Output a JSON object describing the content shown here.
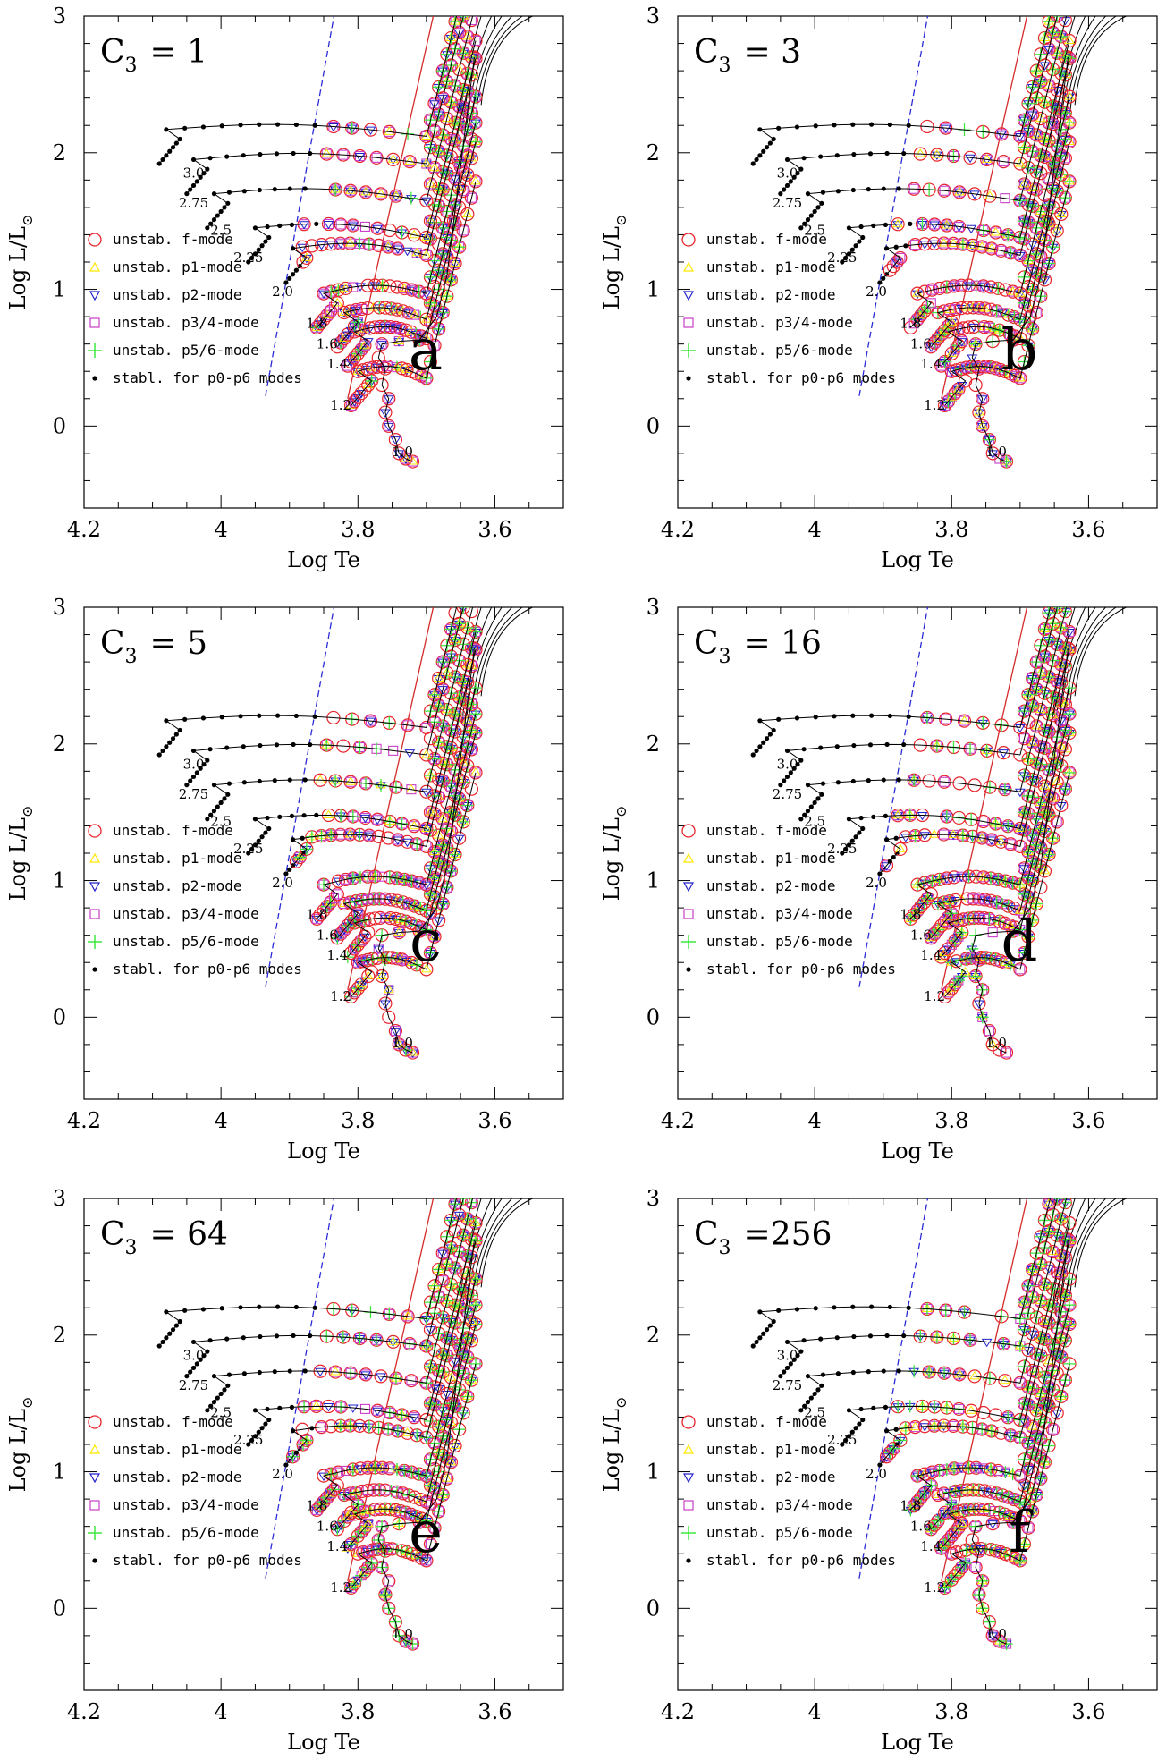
{
  "figure": {
    "colors": {
      "f_mode": "#e8242b",
      "p1_mode": "#ffe800",
      "p2_mode": "#2222cc",
      "p34_mode": "#c83ec8",
      "p56_mode": "#3ee83e",
      "stable": "#000000",
      "blue_edge": "#2b2bd6",
      "red_edge": "#d42b2b",
      "track": "#000000"
    }
  },
  "chart_data": [
    {
      "type": "scatter",
      "panel": "a",
      "title": "C3 = 1",
      "c3_symbol": "C",
      "c3_sub": "3",
      "c3_value": "=  1",
      "xlabel": "Log Te",
      "ylabel": "Log L/L",
      "ylabel_sub": "⊙",
      "xlim": [
        4.2,
        3.5
      ],
      "ylim": [
        -0.6,
        3
      ],
      "xticks": [
        "4.2",
        "4",
        "3.8",
        "3.6"
      ],
      "yticks": [
        "0",
        "1",
        "2",
        "3"
      ],
      "legend": [
        "unstab. f-mode",
        "unstab. p1-mode",
        "unstab. p2-mode",
        "unstab. p3/4-mode",
        "unstab. p5/6-mode",
        "stabl. for p0-p6 modes"
      ],
      "track_masses": [
        "1.0",
        "1.2",
        "1.4",
        "1.6",
        "1.8",
        "2.0",
        "2.25",
        "2.5",
        "2.75",
        "3.0"
      ]
    },
    {
      "type": "scatter",
      "panel": "b",
      "title": "C3 = 3",
      "c3_symbol": "C",
      "c3_sub": "3",
      "c3_value": "=  3",
      "xlabel": "Log Te",
      "ylabel": "Log L/L",
      "ylabel_sub": "⊙",
      "xlim": [
        4.2,
        3.5
      ],
      "ylim": [
        -0.6,
        3
      ],
      "xticks": [
        "4.2",
        "4",
        "3.8",
        "3.6"
      ],
      "yticks": [
        "0",
        "1",
        "2",
        "3"
      ],
      "legend": [
        "unstab. f-mode",
        "unstab. p1-mode",
        "unstab. p2-mode",
        "unstab. p3/4-mode",
        "unstab. p5/6-mode",
        "stabl. for p0-p6 modes"
      ],
      "track_masses": [
        "1.0",
        "1.2",
        "1.4",
        "1.6",
        "1.8",
        "2.0",
        "2.25",
        "2.5",
        "2.75",
        "3.0"
      ]
    },
    {
      "type": "scatter",
      "panel": "c",
      "title": "C3 = 5",
      "c3_symbol": "C",
      "c3_sub": "3",
      "c3_value": "=  5",
      "xlabel": "Log Te",
      "ylabel": "Log L/L",
      "ylabel_sub": "⊙",
      "xlim": [
        4.2,
        3.5
      ],
      "ylim": [
        -0.6,
        3
      ],
      "xticks": [
        "4.2",
        "4",
        "3.8",
        "3.6"
      ],
      "yticks": [
        "0",
        "1",
        "2",
        "3"
      ],
      "legend": [
        "unstab. f-mode",
        "unstab. p1-mode",
        "unstab. p2-mode",
        "unstab. p3/4-mode",
        "unstab. p5/6-mode",
        "stabl. for p0-p6 modes"
      ],
      "track_masses": [
        "1.0",
        "1.2",
        "1.4",
        "1.6",
        "1.8",
        "2.0",
        "2.25",
        "2.5",
        "2.75",
        "3.0"
      ]
    },
    {
      "type": "scatter",
      "panel": "d",
      "title": "C3 = 16",
      "c3_symbol": "C",
      "c3_sub": "3",
      "c3_value": "=  16",
      "xlabel": "Log Te",
      "ylabel": "Log L/L",
      "ylabel_sub": "⊙",
      "xlim": [
        4.2,
        3.5
      ],
      "ylim": [
        -0.6,
        3
      ],
      "xticks": [
        "4.2",
        "4",
        "3.8",
        "3.6"
      ],
      "yticks": [
        "0",
        "1",
        "2",
        "3"
      ],
      "legend": [
        "unstab. f-mode",
        "unstab. p1-mode",
        "unstab. p2-mode",
        "unstab. p3/4-mode",
        "unstab. p5/6-mode",
        "stabl. for p0-p6 modes"
      ],
      "track_masses": [
        "1.0",
        "1.2",
        "1.4",
        "1.6",
        "1.8",
        "2.0",
        "2.25",
        "2.5",
        "2.75",
        "3.0"
      ]
    },
    {
      "type": "scatter",
      "panel": "e",
      "title": "C3 = 64",
      "c3_symbol": "C",
      "c3_sub": "3",
      "c3_value": "=  64",
      "xlabel": "Log Te",
      "ylabel": "Log L/L",
      "ylabel_sub": "⊙",
      "xlim": [
        4.2,
        3.5
      ],
      "ylim": [
        -0.6,
        3
      ],
      "xticks": [
        "4.2",
        "4",
        "3.8",
        "3.6"
      ],
      "yticks": [
        "0",
        "1",
        "2",
        "3"
      ],
      "legend": [
        "unstab. f-mode",
        "unstab. p1-mode",
        "unstab. p2-mode",
        "unstab. p3/4-mode",
        "unstab. p5/6-mode",
        "stabl. for p0-p6 modes"
      ],
      "track_masses": [
        "1.0",
        "1.2",
        "1.4",
        "1.6",
        "1.8",
        "2.0",
        "2.25",
        "2.5",
        "2.75",
        "3.0"
      ]
    },
    {
      "type": "scatter",
      "panel": "f",
      "title": "C3 =256",
      "c3_symbol": "C",
      "c3_sub": "3",
      "c3_value": "=256",
      "xlabel": "Log Te",
      "ylabel": "Log L/L",
      "ylabel_sub": "⊙",
      "xlim": [
        4.2,
        3.5
      ],
      "ylim": [
        -0.6,
        3
      ],
      "xticks": [
        "4.2",
        "4",
        "3.8",
        "3.6"
      ],
      "yticks": [
        "0",
        "1",
        "2",
        "3"
      ],
      "legend": [
        "unstab. f-mode",
        "unstab. p1-mode",
        "unstab. p2-mode",
        "unstab. p3/4-mode",
        "unstab. p5/6-mode",
        "stabl. for p0-p6 modes"
      ],
      "track_masses": [
        "1.0",
        "1.2",
        "1.4",
        "1.6",
        "1.8",
        "2.0",
        "2.25",
        "2.5",
        "2.75",
        "3.0"
      ]
    }
  ]
}
